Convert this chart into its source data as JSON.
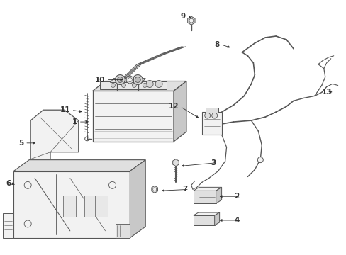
{
  "background_color": "#ffffff",
  "line_color": "#555555",
  "dark_color": "#333333",
  "fill_light": "#f2f2f2",
  "fill_mid": "#e0e0e0",
  "fill_dark": "#c8c8c8",
  "hatch_color": "#888888"
}
